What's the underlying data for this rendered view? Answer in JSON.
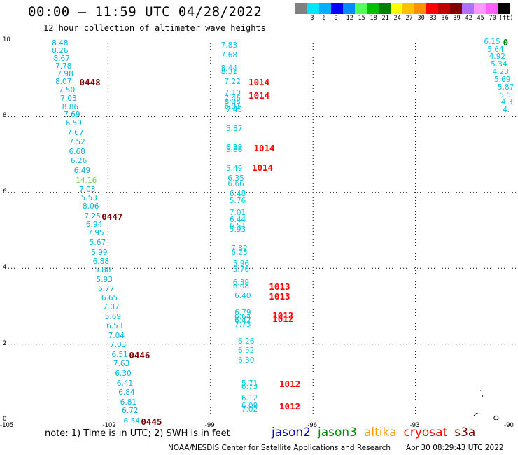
{
  "header": {
    "title": "00:00 — 11:59 UTC 04/28/2022",
    "subtitle": "12 hour collection of altimeter wave heights"
  },
  "colorbar": {
    "colors": [
      "#808080",
      "#00e5ff",
      "#00b0ff",
      "#0000ff",
      "#008bff",
      "#55ff55",
      "#00c000",
      "#008000",
      "#ffff00",
      "#ffc000",
      "#ff9000",
      "#ff0000",
      "#c00000",
      "#800000",
      "#b070ff",
      "#ff99ff",
      "#ff60ff",
      "#000000"
    ],
    "ticks": [
      "3",
      "6",
      "9",
      "12",
      "15",
      "18",
      "21",
      "24",
      "27",
      "30",
      "33",
      "36",
      "39",
      "42",
      "45",
      "70"
    ],
    "unit": "(ft)"
  },
  "axes": {
    "x_ticks": [
      "-105",
      "-102",
      "-99",
      "-96",
      "-93",
      "-90"
    ],
    "y_ticks": [
      "0",
      "2",
      "4",
      "6",
      "8",
      "10"
    ],
    "x_range": [
      -105,
      -90
    ],
    "y_range": [
      0,
      10
    ]
  },
  "tracks": {
    "track1": {
      "color": "#00b4e0",
      "points": [
        {
          "lon": -103.4,
          "lat": 9.9,
          "v": "8.48"
        },
        {
          "lon": -103.4,
          "lat": 9.7,
          "v": "8.26"
        },
        {
          "lon": -103.35,
          "lat": 9.5,
          "v": "8.67"
        },
        {
          "lon": -103.3,
          "lat": 9.3,
          "v": "7.78"
        },
        {
          "lon": -103.25,
          "lat": 9.1,
          "v": "7.98"
        },
        {
          "lon": -103.3,
          "lat": 8.9,
          "v": "8.07"
        },
        {
          "lon": -103.2,
          "lat": 8.68,
          "v": "7.50"
        },
        {
          "lon": -103.15,
          "lat": 8.45,
          "v": "7.03"
        },
        {
          "lon": -103.1,
          "lat": 8.23,
          "v": "8.86"
        },
        {
          "lon": -103.05,
          "lat": 8.03,
          "v": "7.69"
        },
        {
          "lon": -103.0,
          "lat": 7.8,
          "v": "6.59"
        },
        {
          "lon": -102.95,
          "lat": 7.55,
          "v": "7.67"
        },
        {
          "lon": -102.9,
          "lat": 7.3,
          "v": "7.52"
        },
        {
          "lon": -102.9,
          "lat": 7.05,
          "v": "6.68"
        },
        {
          "lon": -102.85,
          "lat": 6.8,
          "v": "6.26"
        },
        {
          "lon": -102.75,
          "lat": 6.55,
          "v": "6.49"
        },
        {
          "lon": -102.7,
          "lat": 6.3,
          "v": "14.16",
          "color": "#66dd44"
        },
        {
          "lon": -102.6,
          "lat": 6.05,
          "v": "7.03"
        },
        {
          "lon": -102.55,
          "lat": 5.83,
          "v": "5.53"
        },
        {
          "lon": -102.5,
          "lat": 5.6,
          "v": "8.06"
        },
        {
          "lon": -102.45,
          "lat": 5.35,
          "v": "7.25"
        },
        {
          "lon": -102.4,
          "lat": 5.13,
          "v": "6.94"
        },
        {
          "lon": -102.35,
          "lat": 4.9,
          "v": "7.95"
        },
        {
          "lon": -102.3,
          "lat": 4.65,
          "v": "5.67"
        },
        {
          "lon": -102.25,
          "lat": 4.4,
          "v": "5.99"
        },
        {
          "lon": -102.2,
          "lat": 4.15,
          "v": "6.88"
        },
        {
          "lon": -102.15,
          "lat": 3.93,
          "v": "5.88"
        },
        {
          "lon": -102.1,
          "lat": 3.68,
          "v": "5.93"
        },
        {
          "lon": -102.05,
          "lat": 3.43,
          "v": "6.77"
        },
        {
          "lon": -101.95,
          "lat": 3.2,
          "v": "6.65"
        },
        {
          "lon": -101.9,
          "lat": 2.95,
          "v": "7.07"
        },
        {
          "lon": -101.85,
          "lat": 2.7,
          "v": "5.69"
        },
        {
          "lon": -101.8,
          "lat": 2.45,
          "v": "6.53"
        },
        {
          "lon": -101.75,
          "lat": 2.2,
          "v": "7.04"
        },
        {
          "lon": -101.7,
          "lat": 1.95,
          "v": "7.03"
        },
        {
          "lon": -101.65,
          "lat": 1.7,
          "v": "6.51"
        },
        {
          "lon": -101.6,
          "lat": 1.45,
          "v": "7.63"
        },
        {
          "lon": -101.55,
          "lat": 1.2,
          "v": "6.30"
        },
        {
          "lon": -101.5,
          "lat": 0.95,
          "v": "6.41"
        },
        {
          "lon": -101.45,
          "lat": 0.7,
          "v": "6.84"
        },
        {
          "lon": -101.4,
          "lat": 0.45,
          "v": "6.81"
        },
        {
          "lon": -101.35,
          "lat": 0.22,
          "v": "6.72"
        },
        {
          "lon": -101.3,
          "lat": -0.05,
          "v": "6.54"
        }
      ],
      "times": [
        {
          "lon": -102.55,
          "lat": 8.9,
          "t": "0448",
          "color": "#800000"
        },
        {
          "lon": -101.9,
          "lat": 5.35,
          "t": "0447",
          "color": "#800000"
        },
        {
          "lon": -101.1,
          "lat": 1.7,
          "t": "0446",
          "color": "#800000"
        },
        {
          "lon": -100.75,
          "lat": -0.05,
          "t": "0445",
          "color": "#800000"
        }
      ]
    },
    "track2": {
      "color": "#00c8e0",
      "points": [
        {
          "lon": -98.45,
          "lat": 9.85,
          "v": "7.83"
        },
        {
          "lon": -98.45,
          "lat": 9.6,
          "v": "7.68"
        },
        {
          "lon": -98.45,
          "lat": 9.25,
          "v": "8.44"
        },
        {
          "lon": -98.45,
          "lat": 9.15,
          "v": "8.31"
        },
        {
          "lon": -98.35,
          "lat": 8.9,
          "v": "7.22"
        },
        {
          "lon": -98.35,
          "lat": 8.6,
          "v": "7.10"
        },
        {
          "lon": -98.35,
          "lat": 8.45,
          "v": "7.46"
        },
        {
          "lon": -98.35,
          "lat": 8.35,
          "v": "8.05"
        },
        {
          "lon": -98.35,
          "lat": 8.25,
          "v": "6.91"
        },
        {
          "lon": -98.3,
          "lat": 8.15,
          "v": "7.45"
        },
        {
          "lon": -98.3,
          "lat": 7.65,
          "v": "5.87"
        },
        {
          "lon": -98.3,
          "lat": 7.15,
          "v": "6.29"
        },
        {
          "lon": -98.3,
          "lat": 7.1,
          "v": "5.86"
        },
        {
          "lon": -98.3,
          "lat": 6.6,
          "v": "5.49"
        },
        {
          "lon": -98.25,
          "lat": 6.35,
          "v": "6.35"
        },
        {
          "lon": -98.25,
          "lat": 6.2,
          "v": "6.66"
        },
        {
          "lon": -98.2,
          "lat": 5.95,
          "v": "6.48"
        },
        {
          "lon": -98.2,
          "lat": 5.75,
          "v": "5.76"
        },
        {
          "lon": -98.2,
          "lat": 5.45,
          "v": "7.01"
        },
        {
          "lon": -98.2,
          "lat": 5.25,
          "v": "6.44"
        },
        {
          "lon": -98.2,
          "lat": 5.1,
          "v": "6.51"
        },
        {
          "lon": -98.2,
          "lat": 5.0,
          "v": "5.93"
        },
        {
          "lon": -98.15,
          "lat": 4.5,
          "v": "7.82"
        },
        {
          "lon": -98.15,
          "lat": 4.4,
          "v": "6.23"
        },
        {
          "lon": -98.1,
          "lat": 4.1,
          "v": "5.96"
        },
        {
          "lon": -98.1,
          "lat": 3.95,
          "v": "5.76"
        },
        {
          "lon": -98.1,
          "lat": 3.6,
          "v": "6.39"
        },
        {
          "lon": -98.1,
          "lat": 3.5,
          "v": "6.08"
        },
        {
          "lon": -98.05,
          "lat": 3.25,
          "v": "6.40"
        },
        {
          "lon": -98.05,
          "lat": 2.8,
          "v": "6.79"
        },
        {
          "lon": -98.05,
          "lat": 2.7,
          "v": "6.64"
        },
        {
          "lon": -98.05,
          "lat": 2.6,
          "v": "6.42"
        },
        {
          "lon": -98.05,
          "lat": 2.5,
          "v": "7.73"
        },
        {
          "lon": -97.95,
          "lat": 2.05,
          "v": "6.26"
        },
        {
          "lon": -97.95,
          "lat": 1.8,
          "v": "6.52"
        },
        {
          "lon": -97.95,
          "lat": 1.55,
          "v": "6.30"
        },
        {
          "lon": -97.85,
          "lat": 0.95,
          "v": "5.71"
        },
        {
          "lon": -97.85,
          "lat": 0.85,
          "v": "6.73"
        },
        {
          "lon": -97.85,
          "lat": 0.55,
          "v": "6.12"
        },
        {
          "lon": -97.85,
          "lat": 0.35,
          "v": "6.09"
        },
        {
          "lon": -97.85,
          "lat": 0.25,
          "v": "7.02"
        }
      ],
      "times": [
        {
          "lon": -97.6,
          "lat": 8.9,
          "t": "1014",
          "color": "#ff0000"
        },
        {
          "lon": -97.6,
          "lat": 8.55,
          "t": "1014",
          "color": "#ff0000"
        },
        {
          "lon": -97.45,
          "lat": 7.15,
          "t": "1014",
          "color": "#ff0000"
        },
        {
          "lon": -97.5,
          "lat": 6.65,
          "t": "1014",
          "color": "#ff0000"
        },
        {
          "lon": -97.0,
          "lat": 3.5,
          "t": "1013",
          "color": "#ff0000"
        },
        {
          "lon": -97.0,
          "lat": 3.25,
          "t": "1013",
          "color": "#ff0000"
        },
        {
          "lon": -96.9,
          "lat": 2.75,
          "t": "1012",
          "color": "#ff0000"
        },
        {
          "lon": -96.9,
          "lat": 2.65,
          "t": "1012",
          "color": "#ff0000"
        },
        {
          "lon": -96.7,
          "lat": 0.95,
          "t": "1012",
          "color": "#ff0000"
        },
        {
          "lon": -96.7,
          "lat": 0.35,
          "t": "1012",
          "color": "#ff0000"
        }
      ]
    },
    "track3": {
      "color": "#00c8e0",
      "points": [
        {
          "lon": -90.75,
          "lat": 9.95,
          "v": "6.15"
        },
        {
          "lon": -90.65,
          "lat": 9.75,
          "v": "5.64"
        },
        {
          "lon": -90.6,
          "lat": 9.55,
          "v": "4.92"
        },
        {
          "lon": -90.55,
          "lat": 9.35,
          "v": "5.34"
        },
        {
          "lon": -90.5,
          "lat": 9.15,
          "v": "4.23"
        },
        {
          "lon": -90.45,
          "lat": 8.95,
          "v": "5.69"
        },
        {
          "lon": -90.35,
          "lat": 8.75,
          "v": "5.87"
        },
        {
          "lon": -90.3,
          "lat": 8.55,
          "v": "5.5"
        },
        {
          "lon": -90.25,
          "lat": 8.35,
          "v": "4.3"
        },
        {
          "lon": -90.2,
          "lat": 8.15,
          "v": "4."
        }
      ],
      "times": [
        {
          "lon": -90.15,
          "lat": 9.95,
          "t": "0",
          "color": "#008000"
        }
      ]
    }
  },
  "footer": {
    "note": "note:  1) Time is in UTC;  2) SWH is in feet",
    "legend": [
      {
        "label": "jason2",
        "color": "#0000cc"
      },
      {
        "label": "jason3",
        "color": "#008800"
      },
      {
        "label": "altika",
        "color": "#ff9900"
      },
      {
        "label": "cryosat",
        "color": "#ff0000"
      },
      {
        "label": "s3a",
        "color": "#800000"
      }
    ],
    "credit": "NOAA/NESDIS Center for Satellite Applications and Research",
    "timestamp": "Apr 30 08:29:43 UTC 2022"
  }
}
